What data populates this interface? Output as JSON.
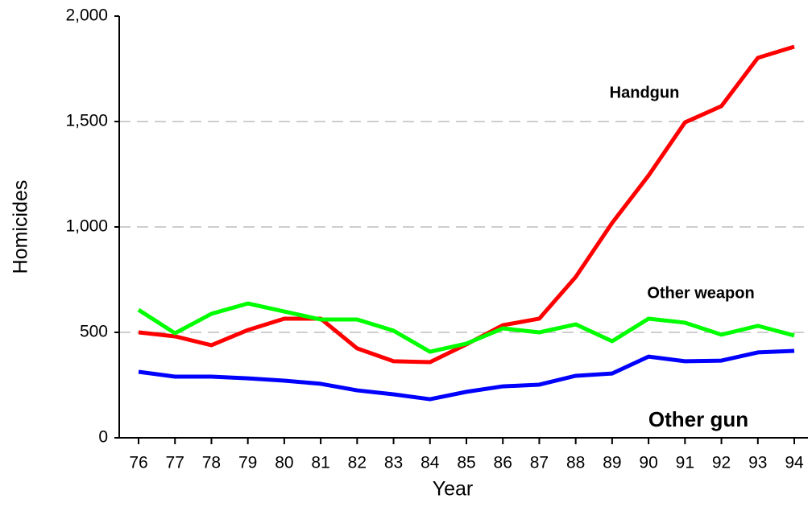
{
  "chart_data": {
    "type": "line",
    "xlabel": "Year",
    "ylabel": "Homicides",
    "categories": [
      "76",
      "77",
      "78",
      "79",
      "80",
      "81",
      "82",
      "83",
      "84",
      "85",
      "86",
      "87",
      "88",
      "89",
      "90",
      "91",
      "92",
      "93",
      "94"
    ],
    "series": [
      {
        "name": "Handgun",
        "color": "#ff0000",
        "values": [
          500,
          481,
          439,
          511,
          565,
          565,
          424,
          363,
          359,
          443,
          534,
          565,
          763,
          1019,
          1244,
          1496,
          1573,
          1802,
          1855
        ]
      },
      {
        "name": "Other weapon",
        "color": "#00ff00",
        "values": [
          607,
          496,
          588,
          637,
          599,
          561,
          561,
          508,
          408,
          447,
          519,
          500,
          538,
          458,
          565,
          546,
          489,
          531,
          485
        ]
      },
      {
        "name": "Other gun",
        "color": "#0000ff",
        "values": [
          313,
          290,
          290,
          282,
          271,
          256,
          225,
          206,
          183,
          218,
          244,
          252,
          294,
          305,
          385,
          363,
          366,
          405,
          412
        ]
      }
    ],
    "ylim": [
      0,
      2000
    ],
    "yticks": [
      0,
      500,
      {
        "value": 1000,
        "label": "1,000"
      },
      {
        "value": 1500,
        "label": "1,500"
      },
      {
        "value": 2000,
        "label": "2,000"
      }
    ],
    "grid": true
  }
}
